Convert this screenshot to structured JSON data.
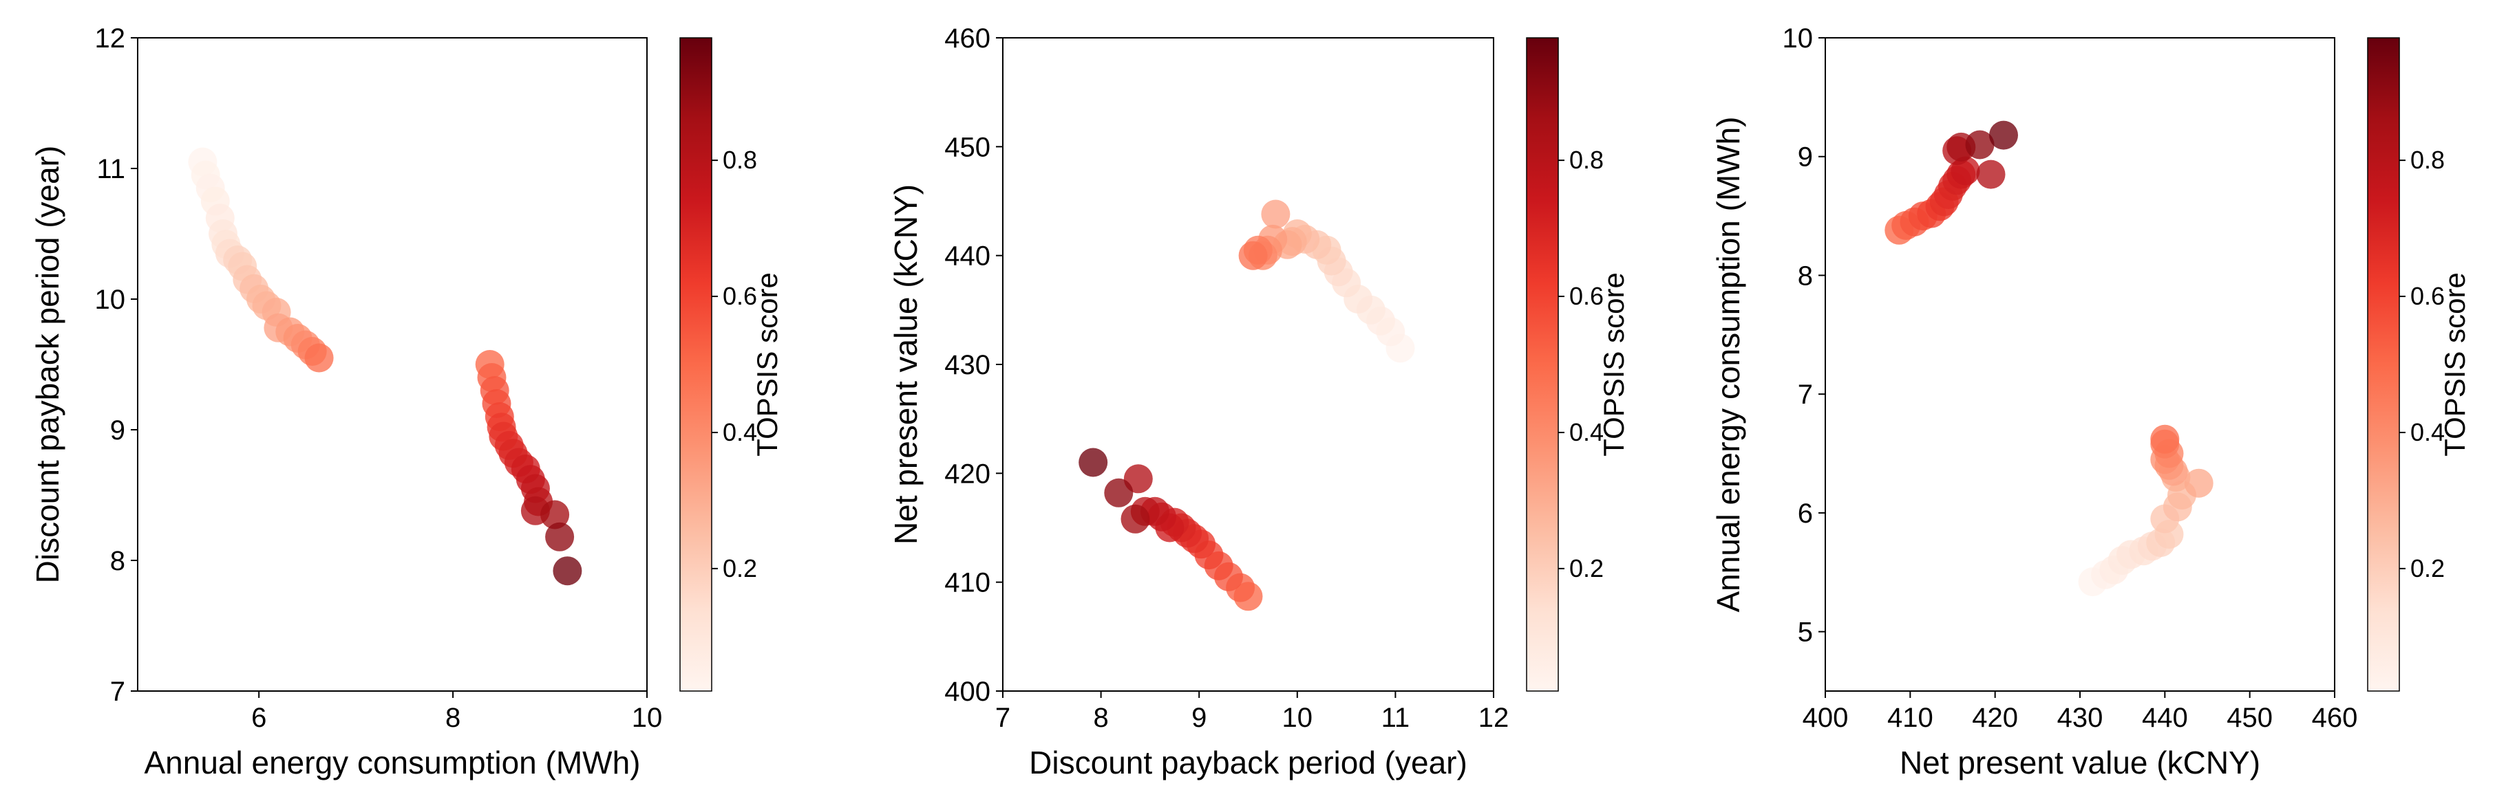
{
  "colormap": [
    "#fff5f0",
    "#fee0d2",
    "#fcbba1",
    "#fc9272",
    "#fb6a4a",
    "#ef3b2c",
    "#cb181d",
    "#a50f15",
    "#67000d"
  ],
  "marker_alpha": 0.78,
  "chart_data": [
    {
      "type": "scatter",
      "xlabel": "Annual energy consumption (MWh)",
      "ylabel": "Discount payback period (year)",
      "xlim": [
        4.75,
        10
      ],
      "ylim": [
        7,
        12
      ],
      "xticks": [
        6,
        8,
        10
      ],
      "yticks": [
        7,
        8,
        9,
        10,
        11,
        12
      ],
      "colorbar": {
        "label": "TOPSIS score",
        "range": [
          0.02,
          0.98
        ],
        "ticks": [
          0.2,
          0.4,
          0.6,
          0.8
        ]
      },
      "points": [
        {
          "x": 5.42,
          "y": 11.05,
          "c": 0.03
        },
        {
          "x": 5.45,
          "y": 10.95,
          "c": 0.04
        },
        {
          "x": 5.5,
          "y": 10.85,
          "c": 0.05
        },
        {
          "x": 5.55,
          "y": 10.75,
          "c": 0.06
        },
        {
          "x": 5.6,
          "y": 10.62,
          "c": 0.08
        },
        {
          "x": 5.63,
          "y": 10.5,
          "c": 0.1
        },
        {
          "x": 5.66,
          "y": 10.42,
          "c": 0.12
        },
        {
          "x": 5.7,
          "y": 10.35,
          "c": 0.15
        },
        {
          "x": 5.78,
          "y": 10.3,
          "c": 0.18
        },
        {
          "x": 5.83,
          "y": 10.25,
          "c": 0.2
        },
        {
          "x": 5.88,
          "y": 10.15,
          "c": 0.22
        },
        {
          "x": 5.95,
          "y": 10.08,
          "c": 0.25
        },
        {
          "x": 6.02,
          "y": 10.0,
          "c": 0.27
        },
        {
          "x": 6.08,
          "y": 9.95,
          "c": 0.28
        },
        {
          "x": 6.18,
          "y": 9.9,
          "c": 0.3
        },
        {
          "x": 6.2,
          "y": 9.78,
          "c": 0.33
        },
        {
          "x": 6.32,
          "y": 9.75,
          "c": 0.35
        },
        {
          "x": 6.4,
          "y": 9.7,
          "c": 0.38
        },
        {
          "x": 6.48,
          "y": 9.65,
          "c": 0.4
        },
        {
          "x": 6.55,
          "y": 9.6,
          "c": 0.44
        },
        {
          "x": 6.62,
          "y": 9.55,
          "c": 0.48
        },
        {
          "x": 8.38,
          "y": 9.5,
          "c": 0.5
        },
        {
          "x": 8.4,
          "y": 9.4,
          "c": 0.52
        },
        {
          "x": 8.43,
          "y": 9.3,
          "c": 0.55
        },
        {
          "x": 8.45,
          "y": 9.2,
          "c": 0.58
        },
        {
          "x": 8.48,
          "y": 9.1,
          "c": 0.6
        },
        {
          "x": 8.5,
          "y": 9.02,
          "c": 0.63
        },
        {
          "x": 8.52,
          "y": 8.95,
          "c": 0.65
        },
        {
          "x": 8.58,
          "y": 8.88,
          "c": 0.67
        },
        {
          "x": 8.62,
          "y": 8.82,
          "c": 0.69
        },
        {
          "x": 8.68,
          "y": 8.75,
          "c": 0.71
        },
        {
          "x": 8.75,
          "y": 8.7,
          "c": 0.73
        },
        {
          "x": 8.8,
          "y": 8.62,
          "c": 0.75
        },
        {
          "x": 8.85,
          "y": 8.55,
          "c": 0.77
        },
        {
          "x": 8.88,
          "y": 8.45,
          "c": 0.79
        },
        {
          "x": 8.85,
          "y": 8.38,
          "c": 0.82
        },
        {
          "x": 9.05,
          "y": 8.35,
          "c": 0.86
        },
        {
          "x": 9.1,
          "y": 8.18,
          "c": 0.9
        },
        {
          "x": 9.18,
          "y": 7.92,
          "c": 0.96
        }
      ]
    },
    {
      "type": "scatter",
      "xlabel": "Discount payback period (year)",
      "ylabel": "Net present value (kCNY)",
      "xlim": [
        7,
        12
      ],
      "ylim": [
        400,
        460
      ],
      "xticks": [
        7,
        8,
        9,
        10,
        11,
        12
      ],
      "yticks": [
        400,
        410,
        420,
        430,
        440,
        450,
        460
      ],
      "colorbar": {
        "label": "TOPSIS score",
        "range": [
          0.02,
          0.98
        ],
        "ticks": [
          0.2,
          0.4,
          0.6,
          0.8
        ]
      },
      "points": [
        {
          "x": 11.05,
          "y": 431.5,
          "c": 0.03
        },
        {
          "x": 10.95,
          "y": 433.0,
          "c": 0.05
        },
        {
          "x": 10.85,
          "y": 434.0,
          "c": 0.07
        },
        {
          "x": 10.75,
          "y": 435.0,
          "c": 0.09
        },
        {
          "x": 10.62,
          "y": 436.0,
          "c": 0.11
        },
        {
          "x": 10.5,
          "y": 437.5,
          "c": 0.13
        },
        {
          "x": 10.42,
          "y": 438.5,
          "c": 0.15
        },
        {
          "x": 10.35,
          "y": 439.5,
          "c": 0.18
        },
        {
          "x": 10.3,
          "y": 440.5,
          "c": 0.2
        },
        {
          "x": 10.2,
          "y": 441.0,
          "c": 0.22
        },
        {
          "x": 10.08,
          "y": 441.5,
          "c": 0.25
        },
        {
          "x": 10.0,
          "y": 442.0,
          "c": 0.27
        },
        {
          "x": 9.95,
          "y": 441.3,
          "c": 0.29
        },
        {
          "x": 9.9,
          "y": 441.0,
          "c": 0.31
        },
        {
          "x": 9.78,
          "y": 443.8,
          "c": 0.33
        },
        {
          "x": 9.75,
          "y": 441.5,
          "c": 0.35
        },
        {
          "x": 9.7,
          "y": 440.5,
          "c": 0.38
        },
        {
          "x": 9.65,
          "y": 440.0,
          "c": 0.41
        },
        {
          "x": 9.6,
          "y": 440.5,
          "c": 0.44
        },
        {
          "x": 9.55,
          "y": 440.0,
          "c": 0.47
        },
        {
          "x": 9.5,
          "y": 408.7,
          "c": 0.5
        },
        {
          "x": 9.42,
          "y": 409.5,
          "c": 0.52
        },
        {
          "x": 9.3,
          "y": 410.5,
          "c": 0.55
        },
        {
          "x": 9.2,
          "y": 411.5,
          "c": 0.58
        },
        {
          "x": 9.1,
          "y": 412.5,
          "c": 0.6
        },
        {
          "x": 9.02,
          "y": 413.5,
          "c": 0.63
        },
        {
          "x": 8.95,
          "y": 414.0,
          "c": 0.65
        },
        {
          "x": 8.88,
          "y": 414.5,
          "c": 0.67
        },
        {
          "x": 8.82,
          "y": 415.0,
          "c": 0.69
        },
        {
          "x": 8.75,
          "y": 415.5,
          "c": 0.71
        },
        {
          "x": 8.7,
          "y": 415.0,
          "c": 0.73
        },
        {
          "x": 8.62,
          "y": 416.0,
          "c": 0.75
        },
        {
          "x": 8.55,
          "y": 416.5,
          "c": 0.77
        },
        {
          "x": 8.45,
          "y": 416.5,
          "c": 0.79
        },
        {
          "x": 8.38,
          "y": 419.5,
          "c": 0.82
        },
        {
          "x": 8.35,
          "y": 415.8,
          "c": 0.86
        },
        {
          "x": 8.18,
          "y": 418.2,
          "c": 0.9
        },
        {
          "x": 7.92,
          "y": 421.0,
          "c": 0.96
        }
      ]
    },
    {
      "type": "scatter",
      "xlabel": "Net present value (kCNY)",
      "ylabel": "Annual energy consumption (MWh)",
      "xlim": [
        400,
        460
      ],
      "ylim": [
        4.5,
        10
      ],
      "xticks": [
        400,
        410,
        420,
        430,
        440,
        450,
        460
      ],
      "yticks": [
        5,
        6,
        7,
        8,
        9,
        10
      ],
      "colorbar": {
        "label": "TOPSIS score",
        "range": [
          0.02,
          0.98
        ],
        "ticks": [
          0.2,
          0.4,
          0.6,
          0.8
        ]
      },
      "points": [
        {
          "x": 431.5,
          "y": 5.42,
          "c": 0.03
        },
        {
          "x": 433.0,
          "y": 5.48,
          "c": 0.05
        },
        {
          "x": 434.0,
          "y": 5.52,
          "c": 0.07
        },
        {
          "x": 435.0,
          "y": 5.6,
          "c": 0.09
        },
        {
          "x": 436.0,
          "y": 5.65,
          "c": 0.11
        },
        {
          "x": 437.5,
          "y": 5.68,
          "c": 0.13
        },
        {
          "x": 438.5,
          "y": 5.72,
          "c": 0.15
        },
        {
          "x": 439.5,
          "y": 5.75,
          "c": 0.18
        },
        {
          "x": 440.5,
          "y": 5.82,
          "c": 0.2
        },
        {
          "x": 440.0,
          "y": 5.95,
          "c": 0.22
        },
        {
          "x": 441.5,
          "y": 6.05,
          "c": 0.25
        },
        {
          "x": 442.0,
          "y": 6.15,
          "c": 0.27
        },
        {
          "x": 441.3,
          "y": 6.3,
          "c": 0.29
        },
        {
          "x": 444.0,
          "y": 6.25,
          "c": 0.31
        },
        {
          "x": 441.0,
          "y": 6.35,
          "c": 0.33
        },
        {
          "x": 440.5,
          "y": 6.4,
          "c": 0.36
        },
        {
          "x": 440.0,
          "y": 6.45,
          "c": 0.39
        },
        {
          "x": 440.5,
          "y": 6.5,
          "c": 0.42
        },
        {
          "x": 440.0,
          "y": 6.58,
          "c": 0.45
        },
        {
          "x": 440.0,
          "y": 6.62,
          "c": 0.48
        },
        {
          "x": 408.7,
          "y": 8.38,
          "c": 0.5
        },
        {
          "x": 409.5,
          "y": 8.42,
          "c": 0.52
        },
        {
          "x": 410.5,
          "y": 8.45,
          "c": 0.55
        },
        {
          "x": 411.5,
          "y": 8.5,
          "c": 0.58
        },
        {
          "x": 412.5,
          "y": 8.52,
          "c": 0.6
        },
        {
          "x": 413.5,
          "y": 8.58,
          "c": 0.63
        },
        {
          "x": 414.0,
          "y": 8.62,
          "c": 0.65
        },
        {
          "x": 414.5,
          "y": 8.68,
          "c": 0.67
        },
        {
          "x": 415.0,
          "y": 8.75,
          "c": 0.69
        },
        {
          "x": 415.5,
          "y": 8.8,
          "c": 0.71
        },
        {
          "x": 416.0,
          "y": 8.85,
          "c": 0.73
        },
        {
          "x": 416.5,
          "y": 8.88,
          "c": 0.75
        },
        {
          "x": 415.5,
          "y": 9.05,
          "c": 0.8
        },
        {
          "x": 419.5,
          "y": 8.85,
          "c": 0.82
        },
        {
          "x": 416.0,
          "y": 9.08,
          "c": 0.85
        },
        {
          "x": 418.2,
          "y": 9.1,
          "c": 0.9
        },
        {
          "x": 421.0,
          "y": 9.18,
          "c": 0.96
        }
      ]
    }
  ]
}
